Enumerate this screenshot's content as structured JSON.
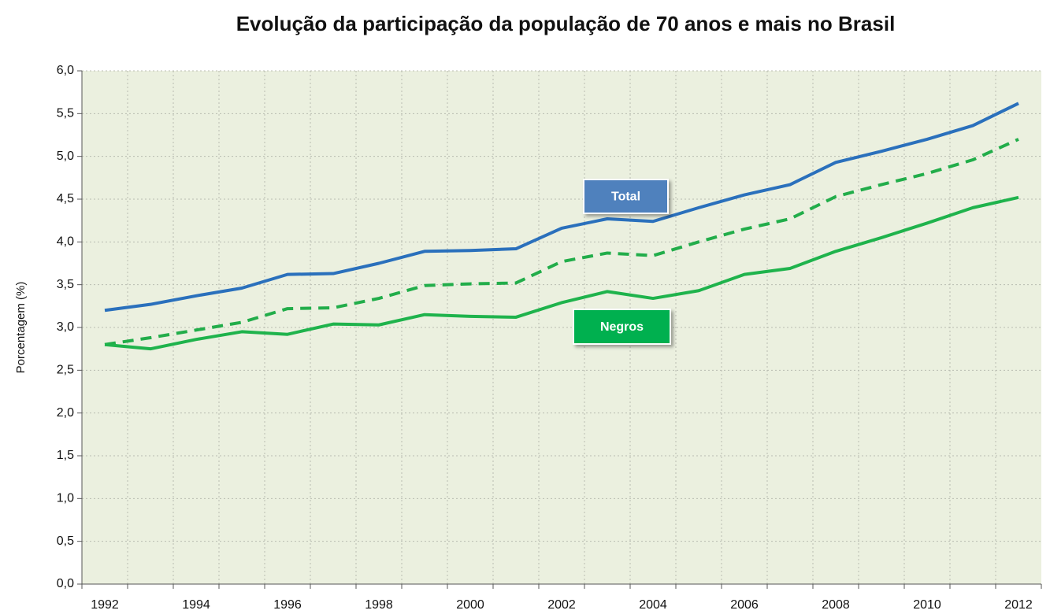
{
  "chart_data": {
    "type": "line",
    "title": "Evolução da participação da população de 70 anos e mais no Brasil",
    "y_label": "Porcentagem (%)",
    "categories": [
      "1992",
      null,
      "1994",
      null,
      "1996",
      null,
      "1998",
      null,
      "2000",
      null,
      "2002",
      null,
      "2004",
      null,
      "2006",
      null,
      "2008",
      null,
      "2010",
      null,
      "2012"
    ],
    "series": [
      {
        "name": "Total",
        "color": "#2a70bc",
        "dashed": false,
        "label_color": "#4f81bd",
        "values": [
          3.2,
          3.27,
          3.37,
          3.46,
          3.62,
          3.63,
          3.75,
          3.89,
          3.9,
          3.92,
          4.16,
          4.27,
          4.24,
          4.4,
          4.55,
          4.67,
          4.93,
          5.06,
          5.2,
          5.36,
          5.62
        ]
      },
      {
        "color": "#22ad4a",
        "dashed": true,
        "values": [
          2.8,
          2.88,
          2.97,
          3.06,
          3.22,
          3.23,
          3.34,
          3.49,
          3.51,
          3.52,
          3.77,
          3.87,
          3.84,
          4.0,
          4.15,
          4.27,
          4.53,
          4.67,
          4.8,
          4.96,
          5.2
        ]
      },
      {
        "name": "Negros",
        "color": "#1fb34c",
        "dashed": false,
        "label_color": "#00b050",
        "values": [
          2.8,
          2.75,
          2.86,
          2.95,
          2.92,
          3.04,
          3.03,
          3.15,
          3.13,
          3.12,
          3.29,
          3.42,
          3.34,
          3.43,
          3.62,
          3.69,
          3.89,
          4.05,
          4.22,
          4.4,
          4.52
        ]
      }
    ],
    "ylim": [
      0,
      6
    ],
    "yticks": [
      {
        "value": 0,
        "label": "0,0"
      },
      {
        "value": 0.5,
        "label": "0,5"
      },
      {
        "value": 1,
        "label": "1,0"
      },
      {
        "value": 1.5,
        "label": "1,5"
      },
      {
        "value": 2,
        "label": "2,0"
      },
      {
        "value": 2.5,
        "label": "2,5"
      },
      {
        "value": 3,
        "label": "3,0"
      },
      {
        "value": 3.5,
        "label": "3,5"
      },
      {
        "value": 4,
        "label": "4,0"
      },
      {
        "value": 4.5,
        "label": "4,5"
      },
      {
        "value": 5,
        "label": "5,0"
      },
      {
        "value": 5.5,
        "label": "5,5"
      },
      {
        "value": 6,
        "label": "6,0"
      }
    ],
    "grid": true
  }
}
